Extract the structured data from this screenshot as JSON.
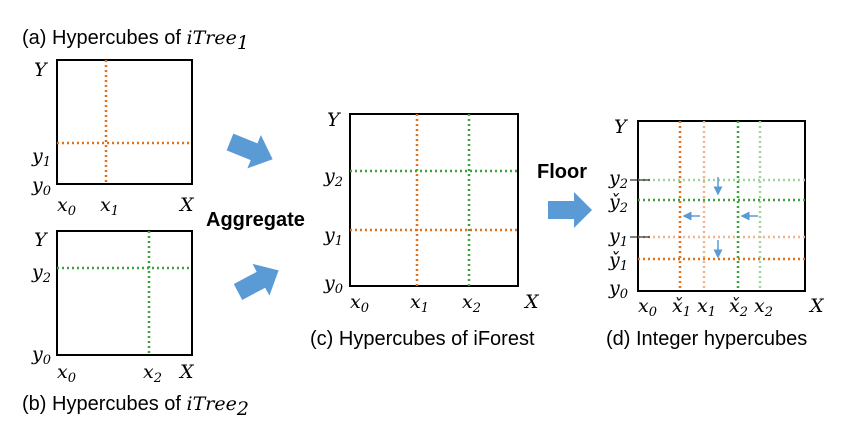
{
  "captions": {
    "a_prefix": "(a) Hypercubes of ",
    "a_tree": "iTree",
    "a_sub": "1",
    "b_prefix": "(b) Hypercubes of ",
    "b_tree": "iTree",
    "b_sub": "2",
    "c": "(c) Hypercubes of iForest",
    "d": "(d) Integer hypercubes"
  },
  "arrows": {
    "aggregate": "Aggregate",
    "floor": "Floor"
  },
  "labels": {
    "Y": "Y",
    "X": "X",
    "x": "x",
    "y": "y",
    "x_check": "x̌",
    "y_check": "y̌",
    "s0": "0",
    "s1": "1",
    "s2": "2"
  },
  "colors": {
    "orange": "#e2711c",
    "green": "#3ea33e",
    "light_orange": "#f2b48a",
    "light_green": "#9fd49b",
    "arrow_blue": "#5b9bd5"
  }
}
